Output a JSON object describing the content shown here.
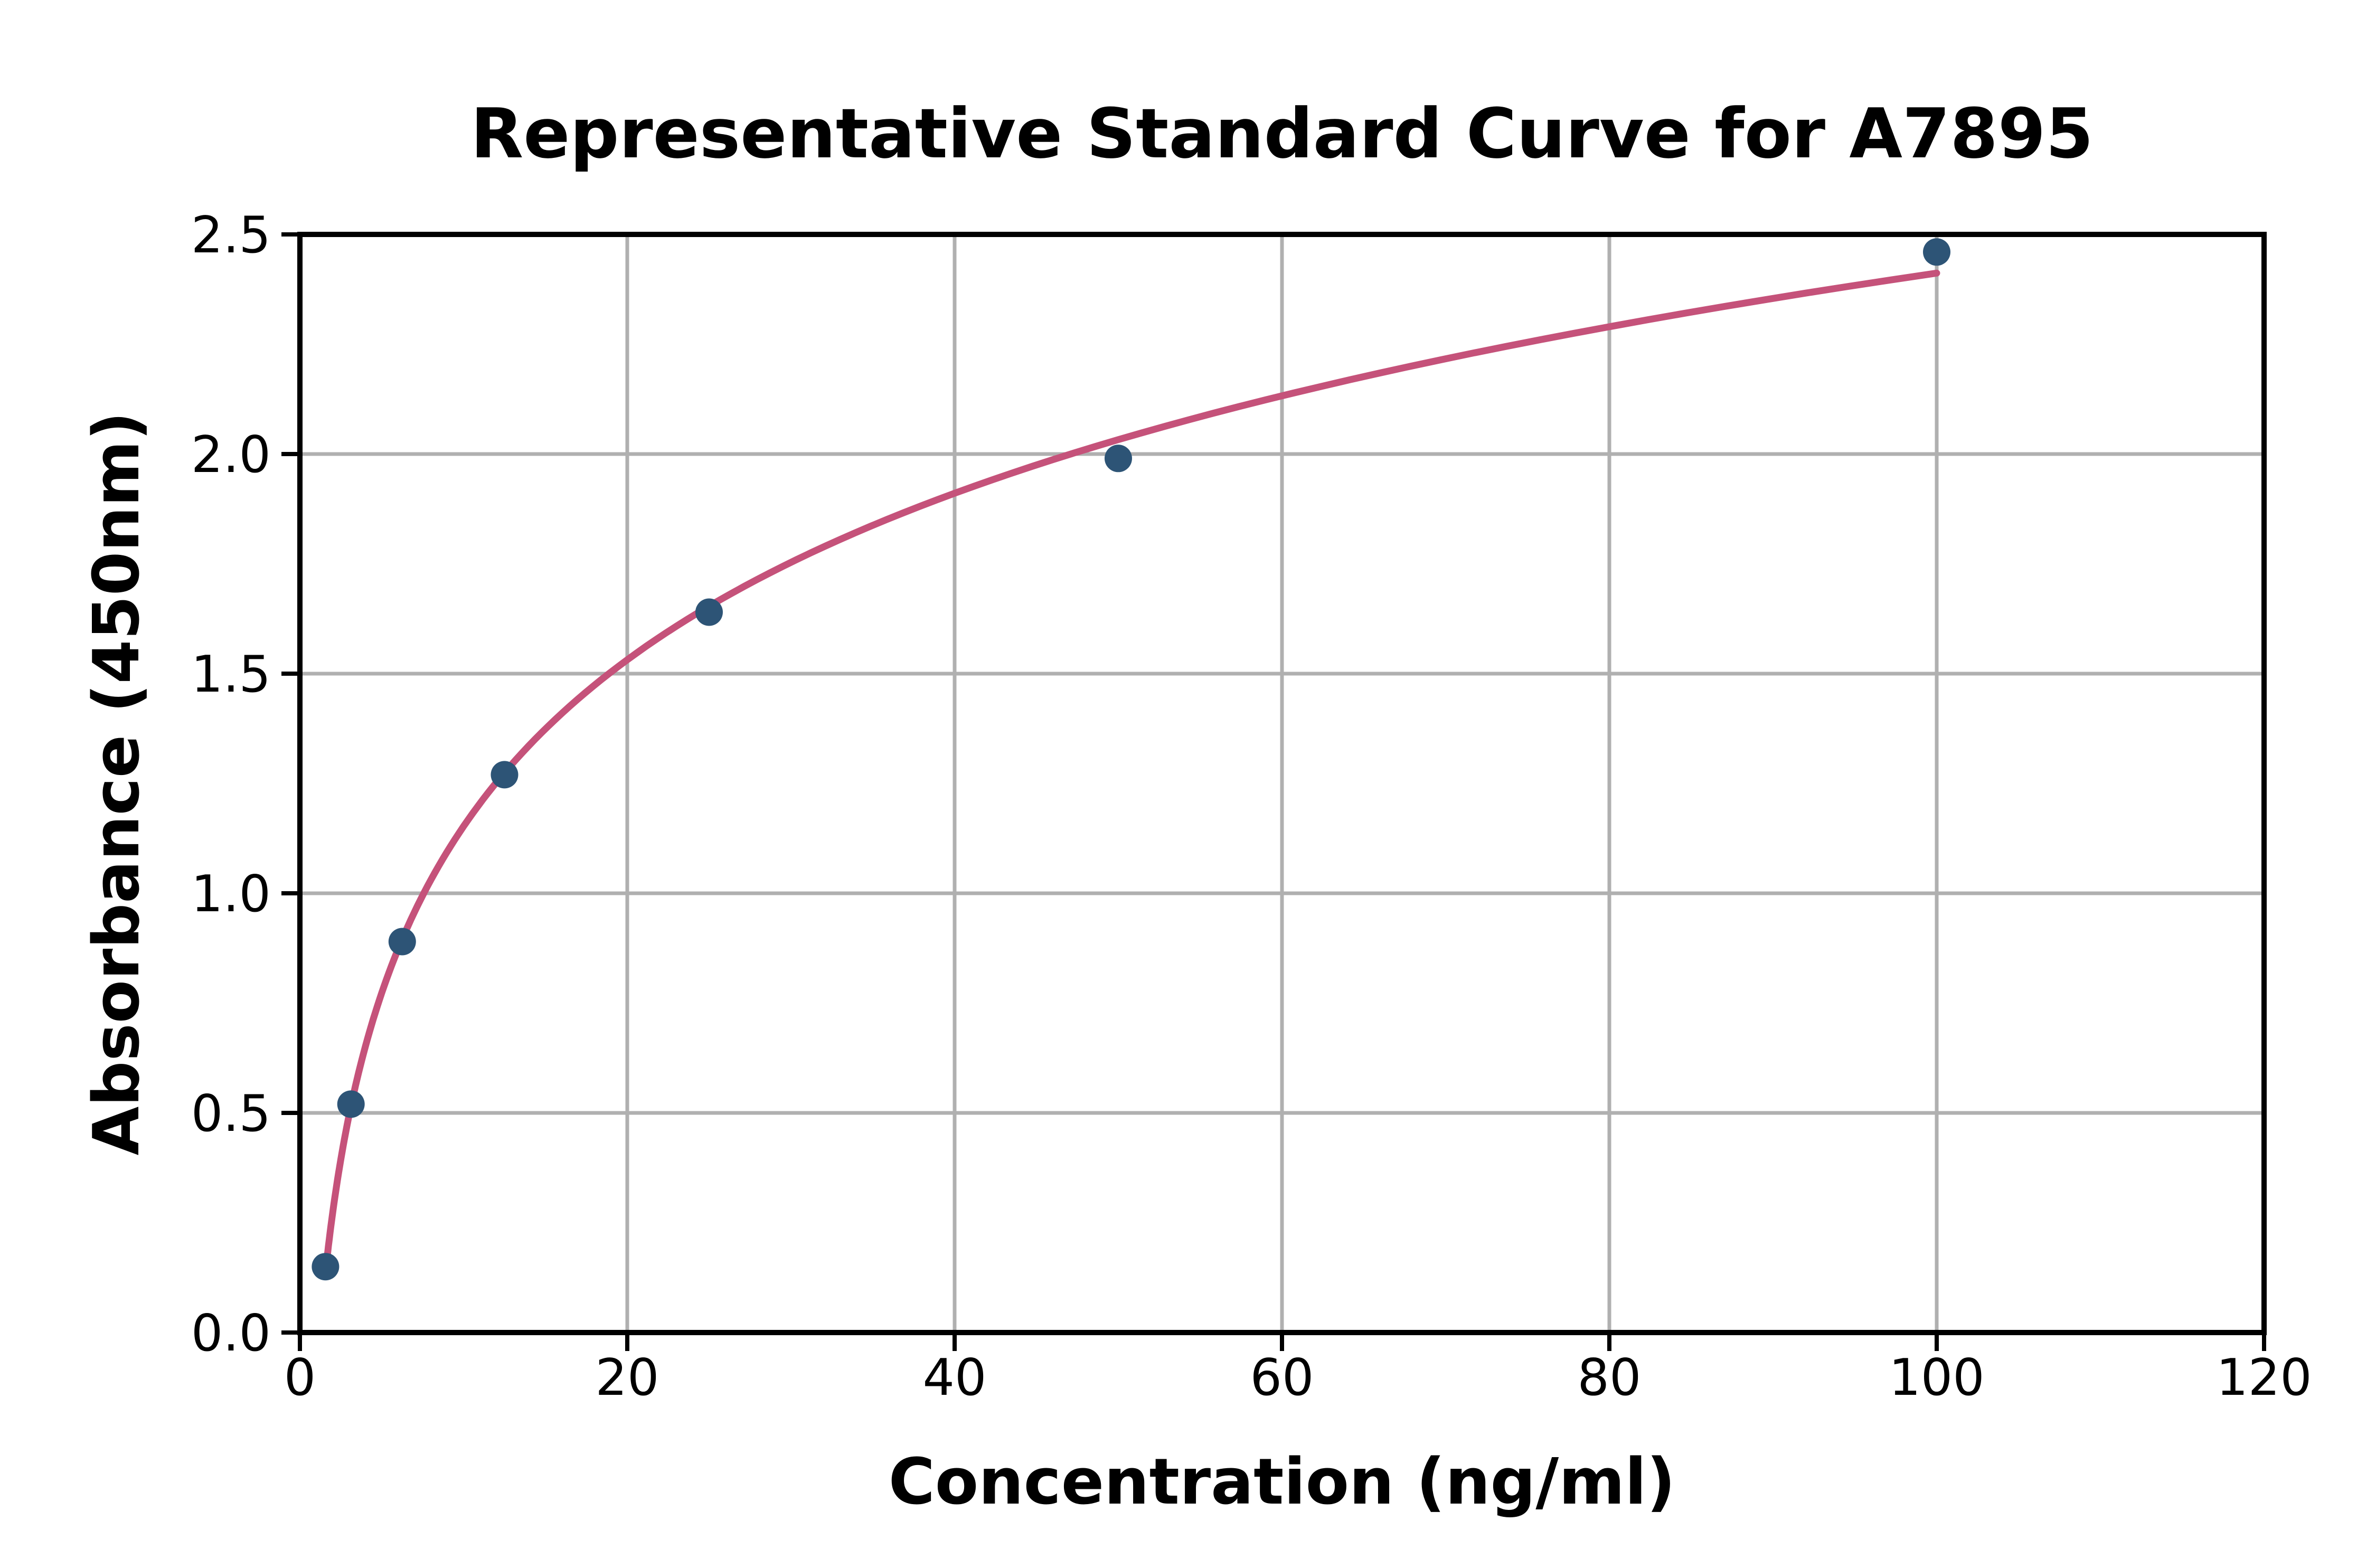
{
  "figure": {
    "background": "#ffffff"
  },
  "chart_data": {
    "type": "scatter",
    "title": "Representative Standard Curve for A7895",
    "xlabel": "Concentration (ng/ml)",
    "ylabel": "Absorbance (450nm)",
    "x": [
      1.56,
      3.12,
      6.25,
      12.5,
      25,
      50,
      100
    ],
    "y": [
      0.15,
      0.52,
      0.89,
      1.27,
      1.64,
      1.99,
      2.46
    ],
    "xlim": [
      0,
      120
    ],
    "ylim": [
      0,
      2.5
    ],
    "x_ticks": [
      0,
      20,
      40,
      60,
      80,
      100,
      120
    ],
    "x_tick_labels": [
      "0",
      "20",
      "40",
      "60",
      "80",
      "100",
      "120"
    ],
    "y_ticks": [
      0,
      0.5,
      1,
      1.5,
      2,
      2.5
    ],
    "y_tick_labels": [
      "0.0",
      "0.5",
      "1.0",
      "1.5",
      "2.0",
      "2.5"
    ],
    "grid": true,
    "legend_position": "none",
    "fit_curve": "logarithmic-least-squares",
    "marker_size_px": 26,
    "colors": {
      "marker": "#2d5476",
      "curve": "#c5527a",
      "grid": "#b0b0b0",
      "axis": "#000000",
      "background": "#ffffff"
    }
  }
}
